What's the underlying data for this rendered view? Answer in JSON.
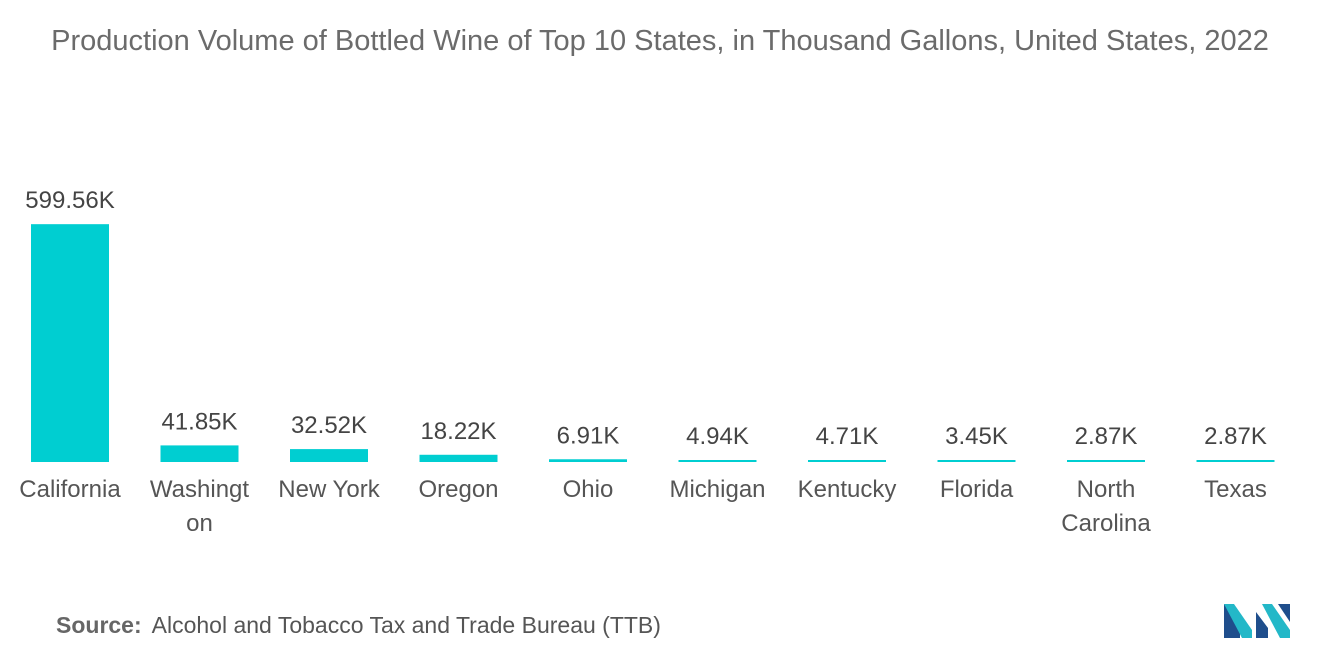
{
  "chart_data": {
    "type": "bar",
    "title": "Production Volume of Bottled Wine of Top 10 States, in Thousand Gallons, United States, 2022",
    "categories": [
      "California",
      "Washington",
      "New York",
      "Oregon",
      "Ohio",
      "Michigan",
      "Kentucky",
      "Florida",
      "North Carolina",
      "Texas"
    ],
    "category_display_lines": [
      [
        "California"
      ],
      [
        "Washingt",
        "on"
      ],
      [
        "New York"
      ],
      [
        "Oregon"
      ],
      [
        "Ohio"
      ],
      [
        "Michigan"
      ],
      [
        "Kentucky"
      ],
      [
        "Florida"
      ],
      [
        "North",
        "Carolina"
      ],
      [
        "Texas"
      ]
    ],
    "values": [
      599.56,
      41.85,
      32.52,
      18.22,
      6.91,
      4.94,
      4.71,
      3.45,
      2.87,
      2.87
    ],
    "value_labels": [
      "599.56K",
      "41.85K",
      "32.52K",
      "18.22K",
      "6.91K",
      "4.94K",
      "4.71K",
      "3.45K",
      "2.87K",
      "2.87K"
    ],
    "xlabel": "",
    "ylabel": "",
    "ylim": [
      0,
      600
    ],
    "grid": false,
    "legend": "none",
    "bar_color": "#00CED1"
  },
  "source": {
    "label": "Source:",
    "text": "Alcohol and Tobacco Tax and Trade Bureau (TTB)"
  },
  "logo": {
    "icon": "mordor-intelligence-logo-icon",
    "colors": [
      "#1f4e8c",
      "#23b8c8"
    ]
  }
}
